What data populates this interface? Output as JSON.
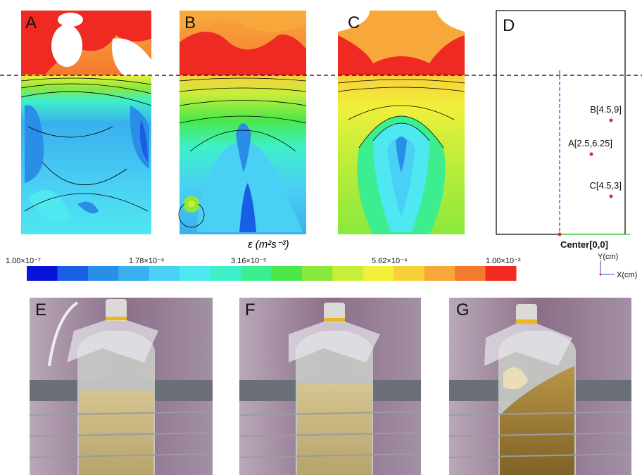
{
  "panel_labels": [
    "A",
    "B",
    "C",
    "D",
    "E",
    "F",
    "G"
  ],
  "colorbar": {
    "label": "ε  (m²s⁻³)",
    "tick_labels": [
      "1.00×10⁻⁷",
      "1.78×10⁻⁶",
      "3.16×10⁻⁵",
      "5.62×10⁻⁴",
      "1.00×10⁻²"
    ],
    "colors": [
      "#0a14d8",
      "#1a5ee6",
      "#2a8ee8",
      "#3ab0ee",
      "#4ad0f4",
      "#4ee8f0",
      "#3ef0c8",
      "#3cee90",
      "#4ae84a",
      "#8ae83c",
      "#c8ee3a",
      "#f0f03a",
      "#f8d03a",
      "#f8a83a",
      "#f47a30",
      "#ee2a22"
    ]
  },
  "diagram": {
    "points": [
      "B[4.5,9]",
      "A[2.5,6.25]",
      "C[4.5,3]"
    ],
    "origin": "Center[0,0]",
    "y_axis": "Y(cm)",
    "x_axis": "X(cm)"
  }
}
